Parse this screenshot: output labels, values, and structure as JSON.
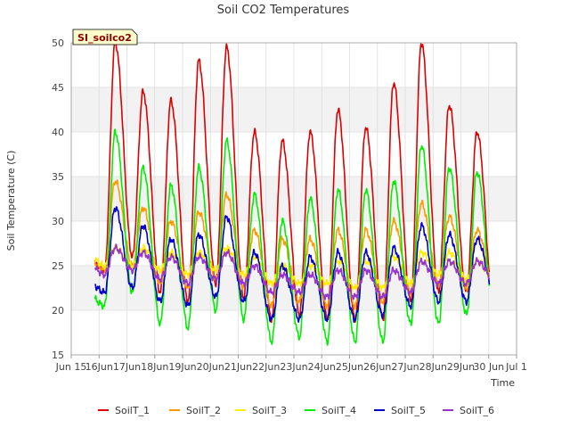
{
  "chart_data": {
    "type": "line",
    "title": "Soil CO2 Temperatures",
    "xlabel": "Time",
    "ylabel": "Soil Temperature (C)",
    "station_label": "SI_soilco2",
    "xlim": [
      15,
      31
    ],
    "ylim": [
      15,
      50
    ],
    "x_ticks": [
      {
        "v": 15,
        "label": "Jun 15"
      },
      {
        "v": 16,
        "label": "16Jun"
      },
      {
        "v": 17,
        "label": "17Jun"
      },
      {
        "v": 18,
        "label": "18Jun"
      },
      {
        "v": 19,
        "label": "19Jun"
      },
      {
        "v": 20,
        "label": "20Jun"
      },
      {
        "v": 21,
        "label": "21Jun"
      },
      {
        "v": 22,
        "label": "22Jun"
      },
      {
        "v": 23,
        "label": "23Jun"
      },
      {
        "v": 24,
        "label": "24Jun"
      },
      {
        "v": 25,
        "label": "25Jun"
      },
      {
        "v": 26,
        "label": "26Jun"
      },
      {
        "v": 27,
        "label": "27Jun"
      },
      {
        "v": 28,
        "label": "28Jun"
      },
      {
        "v": 29,
        "label": "29Jun"
      },
      {
        "v": 30,
        "label": "30 Jun"
      },
      {
        "v": 31,
        "label": "Jul 1"
      }
    ],
    "y_ticks": [
      15,
      20,
      25,
      30,
      35,
      40,
      45,
      50
    ],
    "grid": true,
    "legend_position": "bottom",
    "days": [
      16,
      17,
      18,
      19,
      20,
      21,
      22,
      23,
      24,
      25,
      26,
      27,
      28,
      29,
      30
    ],
    "series": [
      {
        "name": "SoilT_1",
        "color": "#dd0000",
        "max": [
          50,
          44.5,
          43.5,
          48,
          49.5,
          40,
          39,
          40,
          42.5,
          40.5,
          45.5,
          50,
          43,
          40,
          40
        ],
        "min": [
          24.5,
          26,
          22,
          21,
          23,
          21.5,
          19,
          19.5,
          19,
          19,
          19,
          21,
          22,
          22,
          20
        ]
      },
      {
        "name": "SoilT_2",
        "color": "#ff9900",
        "max": [
          34.5,
          31.5,
          30,
          31,
          33,
          29,
          28,
          28,
          29,
          29,
          30,
          32,
          30.5,
          29,
          29
        ],
        "min": [
          24.5,
          25,
          23,
          22.5,
          23.5,
          22.5,
          20.5,
          21,
          20.5,
          20.5,
          21,
          22,
          23,
          22.5,
          22.5
        ]
      },
      {
        "name": "SoilT_3",
        "color": "#ffee00",
        "max": [
          27,
          27,
          26.5,
          26.5,
          27,
          26,
          25,
          25,
          25.5,
          25.5,
          26,
          26.5,
          26.5,
          25.5,
          25.5
        ],
        "min": [
          25,
          25,
          24.5,
          24,
          24.5,
          24,
          23,
          23,
          23,
          22.5,
          22.5,
          23,
          24,
          23.5,
          23.5
        ]
      },
      {
        "name": "SoilT_4",
        "color": "#00ee00",
        "max": [
          40,
          36,
          34,
          36,
          39,
          33,
          30,
          32.5,
          33.5,
          33.5,
          34.5,
          38.5,
          36,
          35.5,
          35.5
        ],
        "min": [
          20.5,
          22,
          18.5,
          18,
          20,
          19,
          16.5,
          17,
          16.5,
          16.5,
          16.5,
          18.5,
          18.5,
          19.5,
          19.5
        ]
      },
      {
        "name": "SoilT_5",
        "color": "#0000cc",
        "max": [
          31.5,
          29.5,
          28,
          28.5,
          30.5,
          26.5,
          25,
          26,
          26.5,
          26.5,
          27,
          29.5,
          28.5,
          28,
          28
        ],
        "min": [
          22,
          22.5,
          21,
          20.5,
          21.5,
          21,
          19,
          19,
          19,
          19,
          19.5,
          20.5,
          21,
          21,
          22
        ]
      },
      {
        "name": "SoilT_6",
        "color": "#9933cc",
        "max": [
          27,
          26.5,
          26,
          26,
          26.5,
          25,
          24,
          24,
          24.5,
          24.5,
          24.5,
          25.5,
          25.5,
          25.5,
          25.5
        ],
        "min": [
          24,
          24.5,
          23.5,
          23,
          23.5,
          23,
          22,
          22,
          21.5,
          21.5,
          21.5,
          22,
          23,
          23,
          23.5
        ]
      }
    ]
  }
}
